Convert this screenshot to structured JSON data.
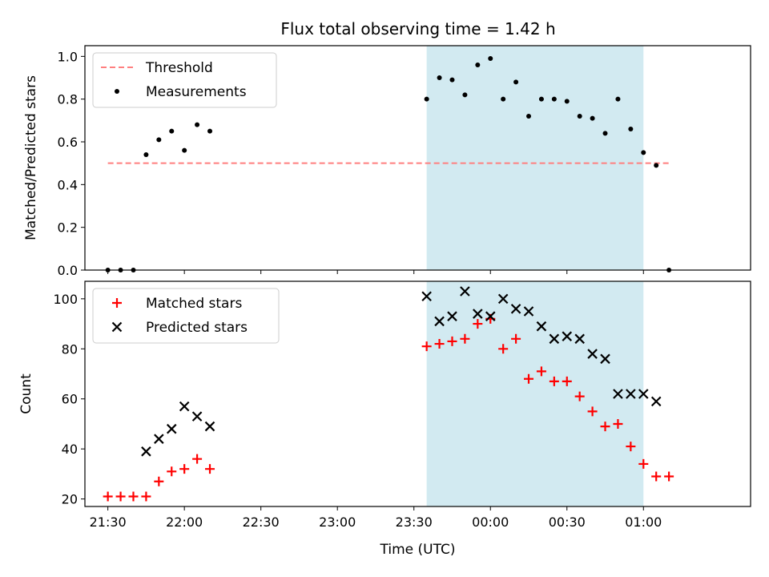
{
  "title": "Flux total observing time = 1.42 h",
  "chart_data": [
    {
      "type": "scatter",
      "ylabel": "Matched/Predicted stars",
      "ylim": [
        0,
        1.05
      ],
      "yticks": [
        0.0,
        0.2,
        0.4,
        0.6,
        0.8,
        1.0
      ],
      "ytick_labels": [
        "0.0",
        "0.2",
        "0.4",
        "0.6",
        "0.8",
        "1.0"
      ],
      "xlim": [
        "21:21",
        "01:42"
      ],
      "x_tick_labels_shown": false,
      "grid": false,
      "legend": "top-left",
      "shaded_interval": [
        "23:35",
        "01:00"
      ],
      "shaded_color": "#add8e6",
      "series": [
        {
          "name": "Threshold",
          "style": "dashed-line",
          "color": "#ff7f7f",
          "x": [
            "21:30",
            "01:10"
          ],
          "y": [
            0.5,
            0.5
          ]
        },
        {
          "name": "Measurements",
          "style": "point",
          "color": "#000000",
          "x": [
            "21:30",
            "21:35",
            "21:40",
            "21:45",
            "21:50",
            "21:55",
            "22:00",
            "22:05",
            "22:10",
            "23:35",
            "23:40",
            "23:45",
            "23:50",
            "23:55",
            "00:00",
            "00:05",
            "00:10",
            "00:15",
            "00:20",
            "00:25",
            "00:30",
            "00:35",
            "00:40",
            "00:45",
            "00:50",
            "00:55",
            "01:00",
            "01:05",
            "01:10"
          ],
          "y": [
            0.0,
            0.0,
            0.0,
            0.54,
            0.61,
            0.65,
            0.56,
            0.68,
            0.65,
            0.8,
            0.9,
            0.89,
            0.82,
            0.96,
            0.99,
            0.8,
            0.88,
            0.72,
            0.8,
            0.8,
            0.79,
            0.72,
            0.71,
            0.64,
            0.8,
            0.66,
            0.55,
            0.49,
            0.0
          ]
        }
      ]
    },
    {
      "type": "scatter",
      "xlabel": "Time (UTC)",
      "ylabel": "Count",
      "ylim": [
        17,
        107
      ],
      "yticks": [
        20,
        40,
        60,
        80,
        100
      ],
      "ytick_labels": [
        "20",
        "40",
        "60",
        "80",
        "100"
      ],
      "xlim": [
        "21:21",
        "01:42"
      ],
      "xticks": [
        "21:30",
        "22:00",
        "22:30",
        "23:00",
        "23:30",
        "00:00",
        "00:30",
        "01:00"
      ],
      "grid": false,
      "legend": "top-left",
      "shaded_interval": [
        "23:35",
        "01:00"
      ],
      "shaded_color": "#add8e6",
      "series": [
        {
          "name": "Matched stars",
          "marker": "+",
          "color": "#ff0000",
          "x": [
            "21:30",
            "21:35",
            "21:40",
            "21:45",
            "21:50",
            "21:55",
            "22:00",
            "22:05",
            "22:10",
            "23:35",
            "23:40",
            "23:45",
            "23:50",
            "23:55",
            "00:00",
            "00:05",
            "00:10",
            "00:15",
            "00:20",
            "00:25",
            "00:30",
            "00:35",
            "00:40",
            "00:45",
            "00:50",
            "00:55",
            "01:00",
            "01:05",
            "01:10"
          ],
          "y": [
            21,
            21,
            21,
            21,
            27,
            31,
            32,
            36,
            32,
            81,
            82,
            83,
            84,
            90,
            92,
            80,
            84,
            68,
            71,
            67,
            67,
            61,
            55,
            49,
            50,
            41,
            34,
            29,
            29
          ]
        },
        {
          "name": "Predicted stars",
          "marker": "x",
          "color": "#000000",
          "x": [
            "21:45",
            "21:50",
            "21:55",
            "22:00",
            "22:05",
            "22:10",
            "23:35",
            "23:40",
            "23:45",
            "23:50",
            "23:55",
            "00:00",
            "00:05",
            "00:10",
            "00:15",
            "00:20",
            "00:25",
            "00:30",
            "00:35",
            "00:40",
            "00:45",
            "00:50",
            "00:55",
            "01:00",
            "01:05"
          ],
          "y": [
            39,
            44,
            48,
            57,
            53,
            49,
            101,
            91,
            93,
            103,
            94,
            93,
            100,
            96,
            95,
            89,
            84,
            85,
            84,
            78,
            76,
            62,
            62,
            62,
            59
          ]
        }
      ]
    }
  ]
}
